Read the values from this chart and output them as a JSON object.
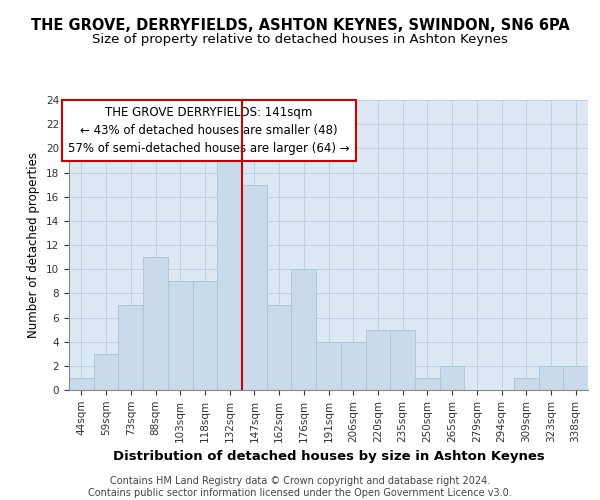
{
  "title": "THE GROVE, DERRYFIELDS, ASHTON KEYNES, SWINDON, SN6 6PA",
  "subtitle": "Size of property relative to detached houses in Ashton Keynes",
  "xlabel": "Distribution of detached houses by size in Ashton Keynes",
  "ylabel": "Number of detached properties",
  "categories": [
    "44sqm",
    "59sqm",
    "73sqm",
    "88sqm",
    "103sqm",
    "118sqm",
    "132sqm",
    "147sqm",
    "162sqm",
    "176sqm",
    "191sqm",
    "206sqm",
    "220sqm",
    "235sqm",
    "250sqm",
    "265sqm",
    "279sqm",
    "294sqm",
    "309sqm",
    "323sqm",
    "338sqm"
  ],
  "values": [
    1,
    3,
    7,
    11,
    9,
    9,
    19,
    17,
    7,
    10,
    4,
    4,
    5,
    5,
    1,
    2,
    0,
    0,
    1,
    2,
    2
  ],
  "bar_color": "#c9daea",
  "bar_edge_color": "#a8c4d8",
  "vline_x": 6.5,
  "vline_color": "#cc0000",
  "annotation_text": "THE GROVE DERRYFIELDS: 141sqm\n← 43% of detached houses are smaller (48)\n57% of semi-detached houses are larger (64) →",
  "annotation_box_color": "#ffffff",
  "annotation_box_edge": "#cc0000",
  "ylim": [
    0,
    24
  ],
  "yticks": [
    0,
    2,
    4,
    6,
    8,
    10,
    12,
    14,
    16,
    18,
    20,
    22,
    24
  ],
  "background_color": "#dce8f4",
  "grid_color": "#c0d0e4",
  "footer_text": "Contains HM Land Registry data © Crown copyright and database right 2024.\nContains public sector information licensed under the Open Government Licence v3.0.",
  "title_fontsize": 10.5,
  "subtitle_fontsize": 9.5,
  "xlabel_fontsize": 9.5,
  "ylabel_fontsize": 8.5,
  "tick_fontsize": 7.5,
  "annotation_fontsize": 8.5,
  "footer_fontsize": 7.0
}
